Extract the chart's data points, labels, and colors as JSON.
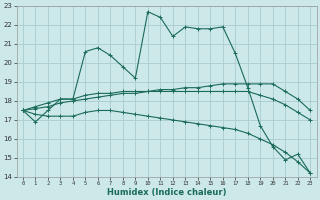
{
  "xlabel": "Humidex (Indice chaleur)",
  "background_color": "#cce8e8",
  "grid_color": "#aacccc",
  "line_color": "#1a6b5a",
  "xlim": [
    -0.5,
    23.5
  ],
  "ylim": [
    14,
    23
  ],
  "yticks": [
    14,
    15,
    16,
    17,
    18,
    19,
    20,
    21,
    22,
    23
  ],
  "xticks": [
    0,
    1,
    2,
    3,
    4,
    5,
    6,
    7,
    8,
    9,
    10,
    11,
    12,
    13,
    14,
    15,
    16,
    17,
    18,
    19,
    20,
    21,
    22,
    23
  ],
  "series": {
    "line1_x": [
      0,
      1,
      2,
      3,
      4,
      5,
      6,
      7,
      8,
      9,
      10,
      11,
      12,
      13,
      14,
      15,
      16,
      17,
      18,
      19,
      20,
      21,
      22,
      23
    ],
    "line1_y": [
      17.5,
      16.9,
      17.5,
      18.1,
      18.1,
      20.6,
      20.8,
      20.4,
      19.8,
      19.2,
      22.7,
      22.4,
      21.4,
      21.9,
      21.8,
      21.8,
      21.9,
      20.5,
      18.7,
      16.7,
      15.6,
      14.9,
      15.2,
      14.2
    ],
    "line2_x": [
      0,
      1,
      2,
      3,
      4,
      5,
      6,
      7,
      8,
      9,
      10,
      11,
      12,
      13,
      14,
      15,
      16,
      17,
      18,
      19,
      20,
      21,
      22,
      23
    ],
    "line2_y": [
      17.5,
      17.6,
      17.7,
      17.9,
      18.0,
      18.1,
      18.2,
      18.3,
      18.4,
      18.4,
      18.5,
      18.5,
      18.5,
      18.5,
      18.5,
      18.5,
      18.5,
      18.5,
      18.5,
      18.3,
      18.1,
      17.8,
      17.4,
      17.0
    ],
    "line3_x": [
      0,
      1,
      2,
      3,
      4,
      5,
      6,
      7,
      8,
      9,
      10,
      11,
      12,
      13,
      14,
      15,
      16,
      17,
      18,
      19,
      20,
      21,
      22,
      23
    ],
    "line3_y": [
      17.5,
      17.3,
      17.2,
      17.2,
      17.2,
      17.4,
      17.5,
      17.5,
      17.4,
      17.3,
      17.2,
      17.1,
      17.0,
      16.9,
      16.8,
      16.7,
      16.6,
      16.5,
      16.3,
      16.0,
      15.7,
      15.3,
      14.8,
      14.2
    ],
    "line4_x": [
      0,
      1,
      2,
      3,
      4,
      5,
      6,
      7,
      8,
      9,
      10,
      11,
      12,
      13,
      14,
      15,
      16,
      17,
      18,
      19,
      20,
      21,
      22,
      23
    ],
    "line4_y": [
      17.5,
      17.7,
      17.9,
      18.1,
      18.1,
      18.3,
      18.4,
      18.4,
      18.5,
      18.5,
      18.5,
      18.6,
      18.6,
      18.7,
      18.7,
      18.8,
      18.9,
      18.9,
      18.9,
      18.9,
      18.9,
      18.5,
      18.1,
      17.5
    ]
  }
}
